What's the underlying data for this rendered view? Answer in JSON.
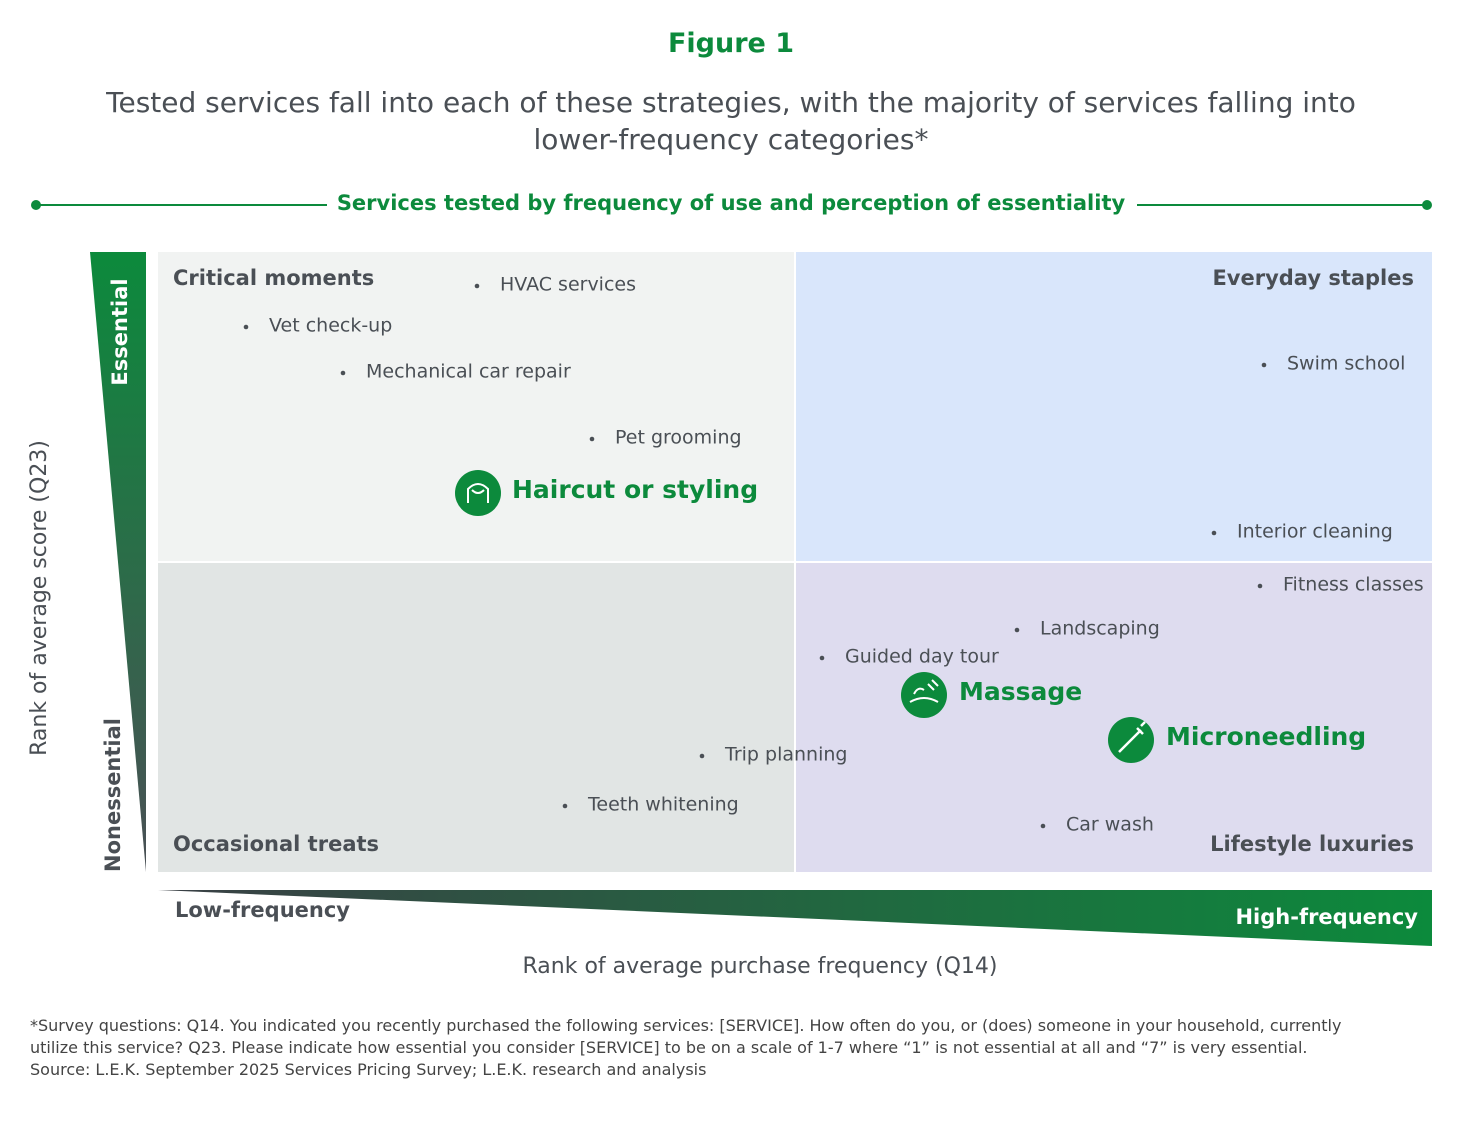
{
  "header": {
    "figure_label": "Figure 1",
    "title": "Tested services fall into each of these strategies, with the majority of services falling into lower-frequency categories*",
    "subtitle": "Services tested by frequency of use and perception of essentiality"
  },
  "quadrants": [
    "Critical moments",
    "Everyday staples",
    "Occasional treats",
    "Lifestyle luxuries"
  ],
  "items": [
    "HVAC services",
    "Vet check-up",
    "Mechanical car repair",
    "Pet grooming",
    "Swim school",
    "Interior cleaning",
    "Fitness classes",
    "Landscaping",
    "Guided day tour",
    "Trip planning",
    "Teeth whitening",
    "Car wash"
  ],
  "highlights": [
    "Haircut or styling",
    "Massage",
    "Microneedling"
  ],
  "axes": {
    "y_label": "Rank of average score (Q23)",
    "y_top": "Essential",
    "y_bottom": "Nonessential",
    "x_label": "Rank of average purchase frequency (Q14)",
    "x_left": "Low-frequency",
    "x_right": "High-frequency"
  },
  "footnote": "*Survey questions: Q14. You indicated you recently purchased the following services: [SERVICE]. How often do you, or (does) someone in your household, currently utilize this service? Q23. Please indicate how essential you consider [SERVICE] to be on a scale of 1-7 where “1” is not essential at all and “7” is very essential.",
  "source": "Source: L.E.K. September 2025 Services Pricing Survey; L.E.K. research and analysis"
}
